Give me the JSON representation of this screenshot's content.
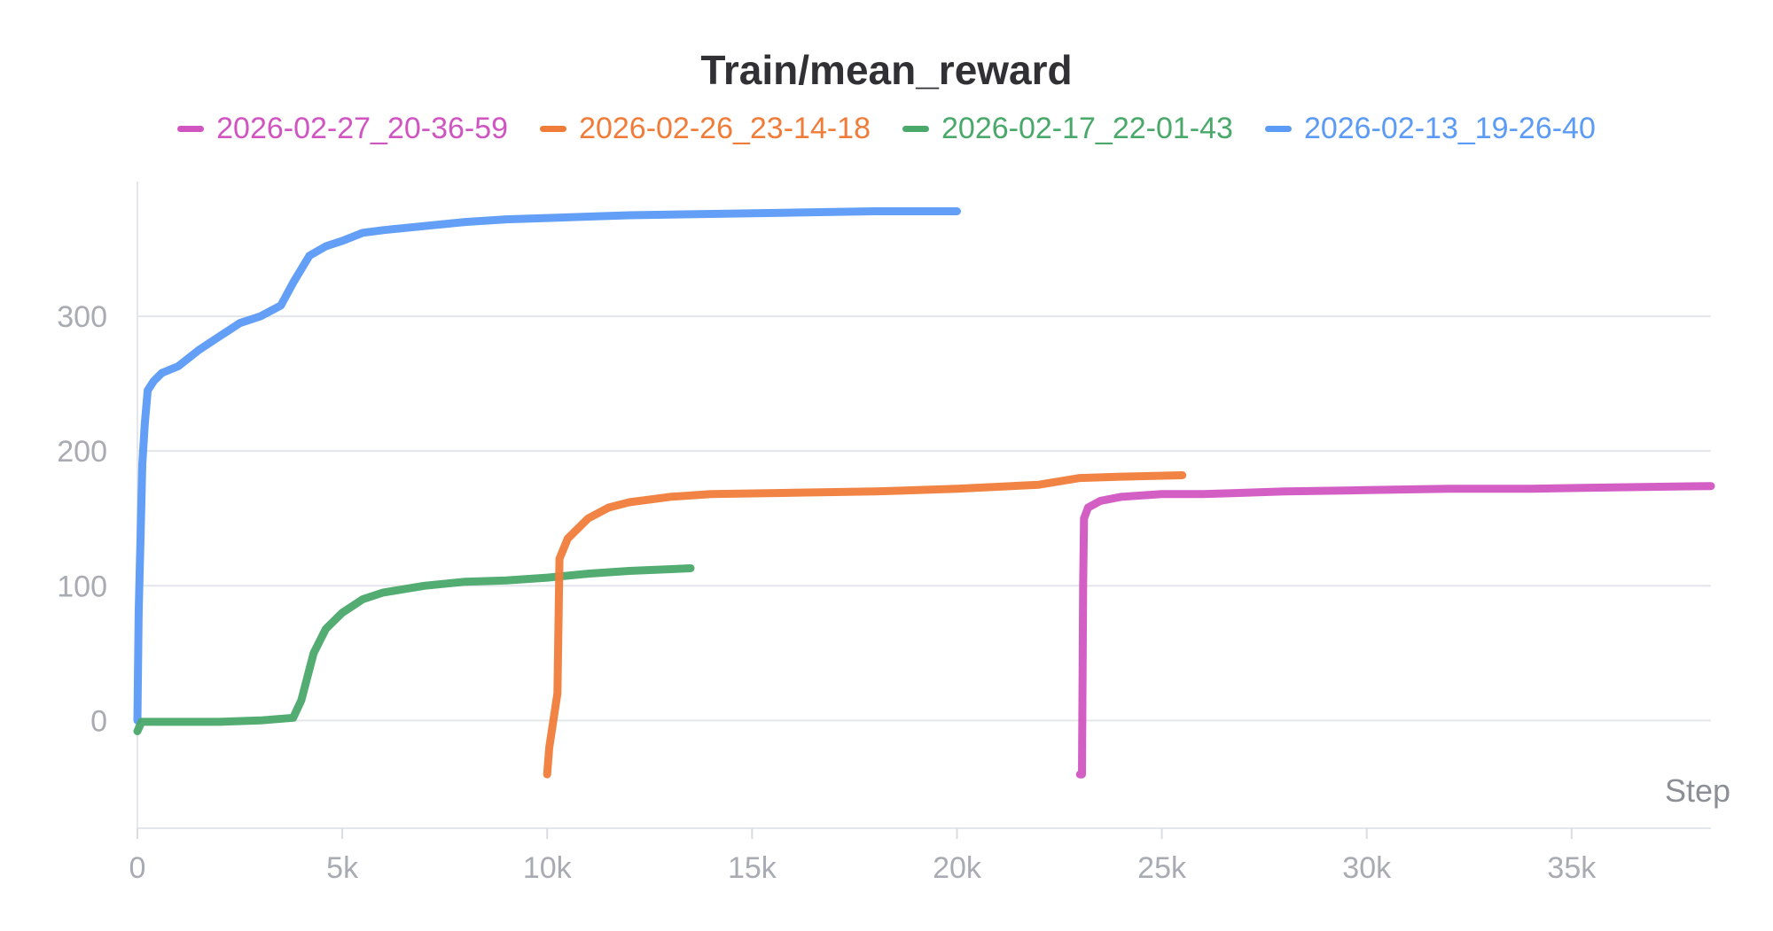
{
  "chart_data": {
    "type": "line",
    "title": "Train/mean_reward",
    "xlabel": "Step",
    "ylabel": "",
    "xlim": [
      0,
      38400
    ],
    "ylim": [
      -80,
      400
    ],
    "x_ticks": [
      0,
      5000,
      10000,
      15000,
      20000,
      25000,
      30000,
      35000
    ],
    "x_tick_labels": [
      "0",
      "5k",
      "10k",
      "15k",
      "20k",
      "25k",
      "30k",
      "35k"
    ],
    "y_ticks": [
      0,
      100,
      200,
      300
    ],
    "y_tick_labels": [
      "0",
      "100",
      "200",
      "300"
    ],
    "grid": true,
    "legend_position": "top-center",
    "series": [
      {
        "name": "2026-02-27_20-36-59",
        "color": "#d155c1",
        "x": [
          23000,
          23050,
          23080,
          23100,
          23200,
          23500,
          24000,
          25000,
          26000,
          28000,
          30000,
          32000,
          34000,
          36000,
          38400
        ],
        "y": [
          -40,
          -40,
          100,
          150,
          158,
          163,
          166,
          168,
          168,
          170,
          171,
          172,
          172,
          173,
          174
        ]
      },
      {
        "name": "2026-02-26_23-14-18",
        "color": "#f07c3a",
        "x": [
          10000,
          10050,
          10150,
          10250,
          10300,
          10500,
          11000,
          11500,
          12000,
          13000,
          14000,
          16000,
          18000,
          20000,
          22000,
          23000,
          24000,
          25500
        ],
        "y": [
          -40,
          -20,
          0,
          20,
          120,
          135,
          150,
          158,
          162,
          166,
          168,
          169,
          170,
          172,
          175,
          180,
          181,
          182
        ]
      },
      {
        "name": "2026-02-17_22-01-43",
        "color": "#4aa86a",
        "x": [
          0,
          100,
          1000,
          2000,
          3000,
          3800,
          4000,
          4300,
          4600,
          5000,
          5500,
          6000,
          7000,
          8000,
          9000,
          10000,
          11000,
          12000,
          13500
        ],
        "y": [
          -8,
          -1,
          -1,
          -1,
          0,
          2,
          15,
          50,
          68,
          80,
          90,
          95,
          100,
          103,
          104,
          106,
          109,
          111,
          113
        ]
      },
      {
        "name": "2026-02-13_19-26-40",
        "color": "#5b9af5",
        "x": [
          0,
          30,
          80,
          120,
          180,
          250,
          400,
          600,
          1000,
          1500,
          2000,
          2500,
          3000,
          3500,
          3800,
          4200,
          4600,
          5000,
          5500,
          6000,
          7000,
          8000,
          9000,
          10000,
          12000,
          14000,
          16000,
          18000,
          20000
        ],
        "y": [
          0,
          80,
          140,
          190,
          220,
          245,
          252,
          258,
          263,
          275,
          285,
          295,
          300,
          308,
          325,
          345,
          352,
          356,
          362,
          364,
          367,
          370,
          372,
          373,
          375,
          376,
          377,
          378,
          378
        ]
      }
    ]
  }
}
